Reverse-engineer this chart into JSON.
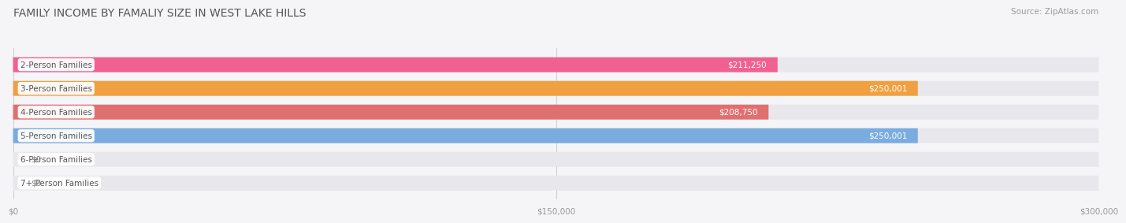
{
  "title": "FAMILY INCOME BY FAMALIY SIZE IN WEST LAKE HILLS",
  "source": "Source: ZipAtlas.com",
  "categories": [
    "2-Person Families",
    "3-Person Families",
    "4-Person Families",
    "5-Person Families",
    "6-Person Families",
    "7+ Person Families"
  ],
  "values": [
    211250,
    250001,
    208750,
    250001,
    0,
    0
  ],
  "bar_colors": [
    "#F06090",
    "#F0A040",
    "#E07070",
    "#7AACE0",
    "#B090C8",
    "#70C8C8"
  ],
  "track_color": "#E8E8EC",
  "xlim": [
    0,
    300000
  ],
  "xticks": [
    0,
    150000,
    300000
  ],
  "xtick_labels": [
    "$0",
    "$150,000",
    "$300,000"
  ],
  "value_labels": [
    "$211,250",
    "$250,001",
    "$208,750",
    "$250,001",
    "$0",
    "$0"
  ],
  "background_color": "#F5F5F8",
  "bar_height": 0.55,
  "title_fontsize": 10,
  "label_fontsize": 7.5,
  "value_fontsize": 7.5
}
